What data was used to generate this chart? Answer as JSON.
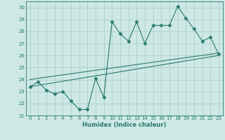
{
  "xlabel": "Humidex (Indice chaleur)",
  "bg_color": "#cde8e5",
  "grid_color": "#aacfcc",
  "line_color": "#2a7a6e",
  "xlim": [
    -0.5,
    23.5
  ],
  "ylim": [
    21,
    30.5
  ],
  "xticks": [
    0,
    1,
    2,
    3,
    4,
    5,
    6,
    7,
    8,
    9,
    10,
    11,
    12,
    13,
    14,
    15,
    16,
    17,
    18,
    19,
    20,
    21,
    22,
    23
  ],
  "yticks": [
    21,
    22,
    23,
    24,
    25,
    26,
    27,
    28,
    29,
    30
  ],
  "main_x": [
    0,
    1,
    2,
    3,
    4,
    5,
    6,
    7,
    8,
    9,
    10,
    11,
    12,
    13,
    14,
    15,
    16,
    17,
    18,
    19,
    20,
    21,
    22,
    23
  ],
  "main_y": [
    23.4,
    23.8,
    23.1,
    22.8,
    23.0,
    22.2,
    21.5,
    21.5,
    24.1,
    22.5,
    28.8,
    27.8,
    27.2,
    28.8,
    27.0,
    28.5,
    28.5,
    28.5,
    30.1,
    29.1,
    28.2,
    27.2,
    27.5,
    26.1
  ],
  "line2_x": [
    0,
    23
  ],
  "line2_y": [
    23.4,
    26.0
  ],
  "line3_x": [
    0,
    23
  ],
  "line3_y": [
    24.0,
    26.2
  ]
}
